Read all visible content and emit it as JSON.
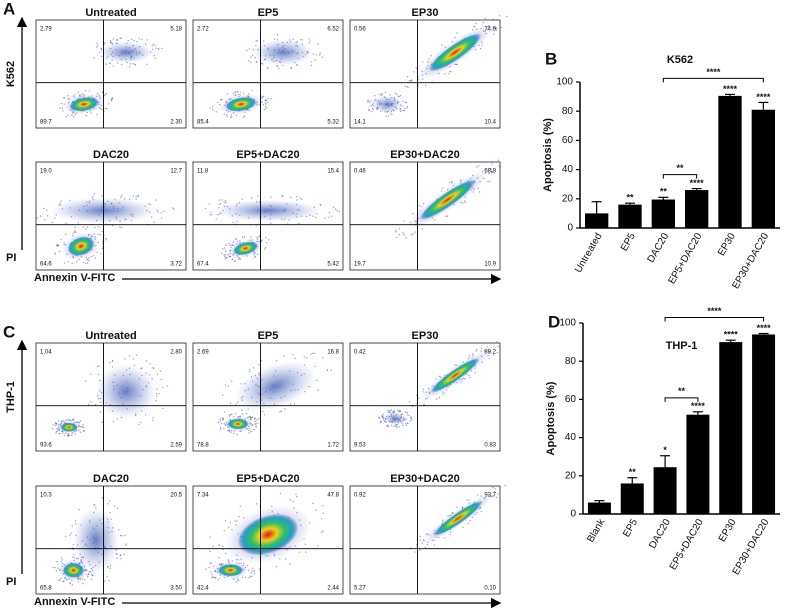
{
  "flow_panels": [
    {
      "label": "A",
      "row_label": "K562",
      "y_label": "PI",
      "x_label": "Annexin V-FITC",
      "plots": [
        {
          "title": "Untreated",
          "quadrants": [
            "2.79",
            "5.18",
            "89.7",
            "2.30"
          ]
        },
        {
          "title": "EP5",
          "quadrants": [
            "2.72",
            "6.52",
            "85.4",
            "5.32"
          ]
        },
        {
          "title": "EP30",
          "quadrants": [
            "0.56",
            "74.9",
            "14.1",
            "10.4"
          ]
        },
        {
          "title": "DAC20",
          "quadrants": [
            "19.0",
            "12.7",
            "64.6",
            "3.72"
          ]
        },
        {
          "title": "EP5+DAC20",
          "quadrants": [
            "11.8",
            "15.4",
            "67.4",
            "5.42"
          ]
        },
        {
          "title": "EP30+DAC20",
          "quadrants": [
            "0.46",
            "68.9",
            "19.7",
            "10.9"
          ]
        }
      ]
    },
    {
      "label": "C",
      "row_label": "THP-1",
      "y_label": "PI",
      "x_label": "Annexin V-FITC",
      "plots": [
        {
          "title": "Untreated",
          "quadrants": [
            "1.04",
            "2.80",
            "93.6",
            "2.59"
          ]
        },
        {
          "title": "EP5",
          "quadrants": [
            "2.69",
            "16.8",
            "78.8",
            "1.72"
          ]
        },
        {
          "title": "EP30",
          "quadrants": [
            "0.42",
            "89.2",
            "9.53",
            "0.83"
          ]
        },
        {
          "title": "DAC20",
          "quadrants": [
            "10.3",
            "20.5",
            "65.8",
            "3.50"
          ]
        },
        {
          "title": "EP5+DAC20",
          "quadrants": [
            "7.34",
            "47.8",
            "42.4",
            "2.44"
          ]
        },
        {
          "title": "EP30+DAC20",
          "quadrants": [
            "0.92",
            "93.7",
            "5.27",
            "0.10"
          ]
        }
      ]
    }
  ],
  "chart_data": [
    {
      "type": "bar",
      "panel": "B",
      "title": "K562",
      "y_label": "Apoptosis (%)",
      "color": "#000000",
      "categories": [
        "Untreated",
        "EP5",
        "DAC20",
        "EP5+DAC20",
        "EP30",
        "EP30+DAC20"
      ],
      "values": [
        10,
        16,
        19.5,
        26,
        90.5,
        81
      ],
      "errors": [
        8,
        1,
        1.5,
        1,
        1,
        5
      ],
      "significance": [
        null,
        "**",
        "**",
        "****",
        "****",
        "****"
      ],
      "brackets": [
        {
          "start": "DAC20",
          "end": "EP5+DAC20",
          "label": "**"
        },
        {
          "start": "DAC20",
          "end": "EP30+DAC20",
          "label": "****"
        }
      ],
      "ylim": [
        0,
        100
      ],
      "yticks": [
        0,
        20,
        40,
        60,
        80,
        100
      ]
    },
    {
      "type": "bar",
      "panel": "D",
      "title": "THP-1",
      "y_label": "Apoptosis (%)",
      "color": "#000000",
      "categories": [
        "Blank",
        "EP5",
        "DAC20",
        "EP5+DAC20",
        "EP30",
        "EP30+DAC20"
      ],
      "values": [
        6,
        16,
        24.5,
        52,
        90,
        94
      ],
      "errors": [
        1,
        3,
        6,
        1.5,
        1,
        0.5
      ],
      "significance": [
        null,
        "**",
        "*",
        "****",
        "****",
        "****"
      ],
      "brackets": [
        {
          "start": "DAC20",
          "end": "EP5+DAC20",
          "label": "**"
        },
        {
          "start": "DAC20",
          "end": "EP30+DAC20",
          "label": "****"
        }
      ],
      "ylim": [
        0,
        100
      ],
      "yticks": [
        0,
        20,
        40,
        60,
        80,
        100
      ]
    }
  ]
}
